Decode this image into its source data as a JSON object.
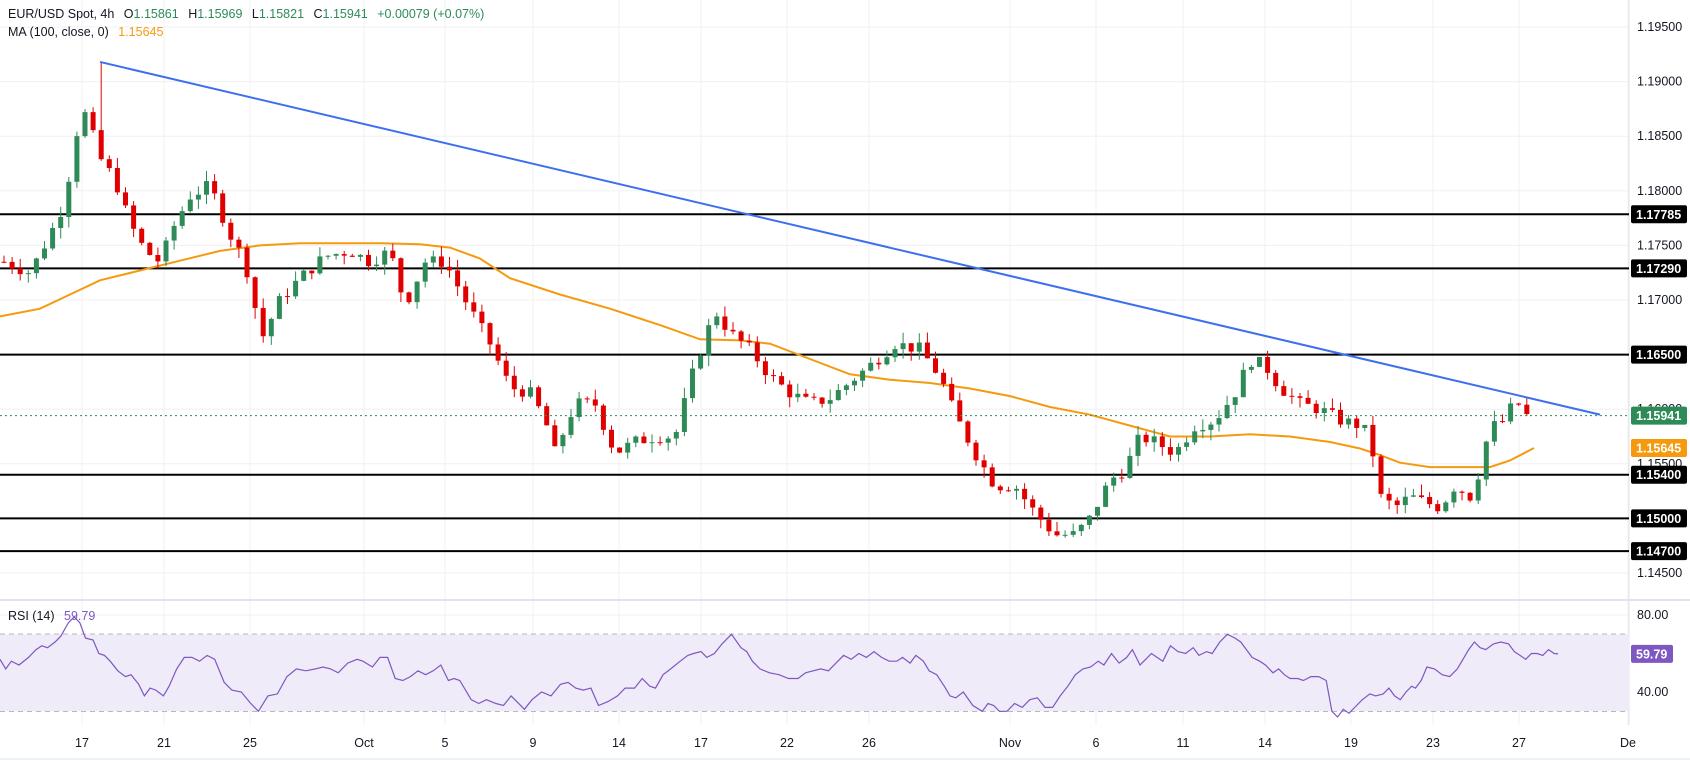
{
  "header": {
    "symbol": "EUR/USD Spot, 4h",
    "open_label": "O",
    "open": "1.15861",
    "high_label": "H",
    "high": "1.15969",
    "low_label": "L",
    "low": "1.15821",
    "close_label": "C",
    "close": "1.15941",
    "change": "+0.00079 (+0.07%)",
    "ma_label": "MA (100, close, 0)",
    "ma_value": "1.15645"
  },
  "rsi_legend": {
    "label": "RSI (14)",
    "value": "59.79"
  },
  "colors": {
    "up": "#2e8b57",
    "down": "#e00000",
    "ma": "#f59a0f",
    "trendline": "#3d6fef",
    "level": "#000000",
    "rsi": "#7e57c2",
    "rsi_band": "#efebf8",
    "grid": "#f0f0f3",
    "last_price": "#2e8b57"
  },
  "chart_data": {
    "type": "candlestick",
    "title": "EUR/USD Spot, 4h",
    "timeframe": "4h",
    "price_axis": {
      "ticks": [
        "1.19500",
        "1.19000",
        "1.18500",
        "1.18000",
        "1.17500",
        "1.17000",
        "1.16500",
        "1.16000",
        "1.15500",
        "1.14500"
      ],
      "range": [
        1.1425,
        1.1975
      ]
    },
    "x_axis": {
      "ticks": [
        "17",
        "21",
        "25",
        "Oct",
        "5",
        "9",
        "14",
        "17",
        "22",
        "26",
        "Nov",
        "6",
        "11",
        "14",
        "19",
        "23",
        "27",
        "De"
      ]
    },
    "horizontal_levels": [
      "1.17785",
      "1.17290",
      "1.16500",
      "1.15400",
      "1.15000",
      "1.14700"
    ],
    "last_price": "1.15941",
    "ma_100_last": "1.15645",
    "trendline": {
      "from": {
        "date": "Sep 18",
        "price": 1.1918
      },
      "to": {
        "date": "Nov 29",
        "price": 1.1595
      }
    },
    "close_path": [
      [
        4,
        1.1735
      ],
      [
        30,
        1.1725
      ],
      [
        50,
        1.176
      ],
      [
        65,
        1.179
      ],
      [
        75,
        1.185
      ],
      [
        85,
        1.187
      ],
      [
        95,
        1.1845
      ],
      [
        100,
        1.183
      ],
      [
        115,
        1.181
      ],
      [
        130,
        1.177
      ],
      [
        145,
        1.1745
      ],
      [
        160,
        1.1735
      ],
      [
        175,
        1.177
      ],
      [
        190,
        1.1795
      ],
      [
        210,
        1.1805
      ],
      [
        230,
        1.176
      ],
      [
        245,
        1.1735
      ],
      [
        262,
        1.1665
      ],
      [
        280,
        1.17
      ],
      [
        300,
        1.172
      ],
      [
        325,
        1.174
      ],
      [
        350,
        1.1745
      ],
      [
        370,
        1.1735
      ],
      [
        390,
        1.1745
      ],
      [
        405,
        1.1695
      ],
      [
        425,
        1.1735
      ],
      [
        445,
        1.1735
      ],
      [
        465,
        1.17
      ],
      [
        490,
        1.166
      ],
      [
        510,
        1.162
      ],
      [
        530,
        1.1615
      ],
      [
        545,
        1.159
      ],
      [
        555,
        1.156
      ],
      [
        575,
        1.1605
      ],
      [
        595,
        1.1605
      ],
      [
        615,
        1.156
      ],
      [
        635,
        1.157
      ],
      [
        655,
        1.1575
      ],
      [
        675,
        1.1575
      ],
      [
        695,
        1.164
      ],
      [
        715,
        1.169
      ],
      [
        730,
        1.167
      ],
      [
        750,
        1.1655
      ],
      [
        770,
        1.163
      ],
      [
        790,
        1.1615
      ],
      [
        810,
        1.1605
      ],
      [
        830,
        1.161
      ],
      [
        850,
        1.1625
      ],
      [
        870,
        1.164
      ],
      [
        895,
        1.166
      ],
      [
        920,
        1.1655
      ],
      [
        940,
        1.163
      ],
      [
        955,
        1.1595
      ],
      [
        975,
        1.156
      ],
      [
        995,
        1.153
      ],
      [
        1015,
        1.153
      ],
      [
        1035,
        1.1505
      ],
      [
        1055,
        1.1485
      ],
      [
        1075,
        1.1485
      ],
      [
        1090,
        1.15
      ],
      [
        1110,
        1.1535
      ],
      [
        1125,
        1.1545
      ],
      [
        1140,
        1.1575
      ],
      [
        1155,
        1.157
      ],
      [
        1175,
        1.156
      ],
      [
        1195,
        1.1585
      ],
      [
        1215,
        1.159
      ],
      [
        1235,
        1.1615
      ],
      [
        1250,
        1.1645
      ],
      [
        1265,
        1.164
      ],
      [
        1280,
        1.162
      ],
      [
        1300,
        1.1605
      ],
      [
        1320,
        1.16
      ],
      [
        1340,
        1.159
      ],
      [
        1360,
        1.1585
      ],
      [
        1370,
        1.1575
      ],
      [
        1380,
        1.152
      ],
      [
        1395,
        1.151
      ],
      [
        1410,
        1.152
      ],
      [
        1425,
        1.1515
      ],
      [
        1440,
        1.151
      ],
      [
        1455,
        1.153
      ],
      [
        1470,
        1.152
      ],
      [
        1480,
        1.1545
      ],
      [
        1490,
        1.1585
      ],
      [
        1500,
        1.1585
      ],
      [
        1510,
        1.16
      ],
      [
        1520,
        1.1605
      ],
      [
        1528,
        1.1592
      ],
      [
        1534,
        1.1594
      ]
    ],
    "ma_path": [
      [
        0,
        1.1685
      ],
      [
        40,
        1.1692
      ],
      [
        70,
        1.1705
      ],
      [
        100,
        1.1718
      ],
      [
        140,
        1.1727
      ],
      [
        180,
        1.1736
      ],
      [
        220,
        1.1745
      ],
      [
        260,
        1.175
      ],
      [
        300,
        1.1752
      ],
      [
        340,
        1.1752
      ],
      [
        380,
        1.1752
      ],
      [
        420,
        1.1751
      ],
      [
        450,
        1.1748
      ],
      [
        480,
        1.1738
      ],
      [
        510,
        1.172
      ],
      [
        560,
        1.1705
      ],
      [
        610,
        1.1692
      ],
      [
        660,
        1.1677
      ],
      [
        700,
        1.1664
      ],
      [
        740,
        1.1663
      ],
      [
        770,
        1.166
      ],
      [
        810,
        1.1646
      ],
      [
        850,
        1.1632
      ],
      [
        890,
        1.1627
      ],
      [
        930,
        1.1624
      ],
      [
        970,
        1.1619
      ],
      [
        1010,
        1.1612
      ],
      [
        1050,
        1.1602
      ],
      [
        1090,
        1.1595
      ],
      [
        1130,
        1.1585
      ],
      [
        1170,
        1.1575
      ],
      [
        1210,
        1.1575
      ],
      [
        1250,
        1.1577
      ],
      [
        1290,
        1.1575
      ],
      [
        1330,
        1.157
      ],
      [
        1360,
        1.1564
      ],
      [
        1380,
        1.1558
      ],
      [
        1400,
        1.1551
      ],
      [
        1430,
        1.1547
      ],
      [
        1460,
        1.1547
      ],
      [
        1490,
        1.1547
      ],
      [
        1510,
        1.1553
      ],
      [
        1534,
        1.15645
      ]
    ],
    "rsi": {
      "period": 14,
      "last": 59.79,
      "upper": 70,
      "middle": 50,
      "lower": 30,
      "axis_ticks": [
        "80.00",
        "40.00"
      ],
      "path": [
        [
          0,
          57
        ],
        [
          6,
          52
        ],
        [
          12,
          56
        ],
        [
          20,
          54
        ],
        [
          30,
          58
        ],
        [
          38,
          62
        ],
        [
          44,
          64
        ],
        [
          50,
          63
        ],
        [
          58,
          66
        ],
        [
          64,
          69
        ],
        [
          72,
          76
        ],
        [
          78,
          79
        ],
        [
          84,
          76
        ],
        [
          90,
          68
        ],
        [
          98,
          67
        ],
        [
          104,
          60
        ],
        [
          110,
          59
        ],
        [
          116,
          56
        ],
        [
          124,
          51
        ],
        [
          132,
          48
        ],
        [
          138,
          49
        ],
        [
          146,
          44
        ],
        [
          152,
          38
        ],
        [
          158,
          42
        ],
        [
          164,
          41
        ],
        [
          172,
          38
        ],
        [
          178,
          43
        ],
        [
          186,
          52
        ],
        [
          194,
          58
        ],
        [
          202,
          58
        ],
        [
          210,
          56
        ],
        [
          218,
          59
        ],
        [
          226,
          57
        ],
        [
          236,
          45
        ],
        [
          244,
          41
        ],
        [
          254,
          40
        ],
        [
          264,
          34
        ],
        [
          272,
          30
        ],
        [
          282,
          38
        ],
        [
          292,
          39
        ],
        [
          302,
          48
        ],
        [
          312,
          52
        ],
        [
          322,
          51
        ],
        [
          332,
          52
        ],
        [
          340,
          53
        ],
        [
          348,
          52
        ],
        [
          356,
          50
        ],
        [
          366,
          55
        ],
        [
          376,
          57
        ],
        [
          382,
          56
        ],
        [
          392,
          53
        ],
        [
          400,
          58
        ],
        [
          408,
          58
        ],
        [
          416,
          47
        ],
        [
          424,
          46
        ],
        [
          432,
          48
        ],
        [
          440,
          51
        ],
        [
          448,
          49
        ],
        [
          456,
          51
        ],
        [
          464,
          54
        ],
        [
          472,
          46
        ],
        [
          478,
          47
        ],
        [
          484,
          46
        ],
        [
          496,
          36
        ],
        [
          504,
          34
        ],
        [
          512,
          36
        ],
        [
          522,
          34
        ],
        [
          530,
          33
        ],
        [
          538,
          38
        ],
        [
          544,
          35
        ],
        [
          552,
          31
        ],
        [
          560,
          36
        ],
        [
          570,
          40
        ],
        [
          580,
          38
        ],
        [
          590,
          44
        ],
        [
          598,
          45
        ],
        [
          606,
          42
        ],
        [
          614,
          41
        ],
        [
          622,
          42
        ],
        [
          630,
          33
        ],
        [
          640,
          35
        ],
        [
          650,
          38
        ],
        [
          658,
          42
        ],
        [
          668,
          42
        ],
        [
          676,
          47
        ],
        [
          684,
          43
        ],
        [
          690,
          42
        ],
        [
          698,
          49
        ],
        [
          706,
          52
        ],
        [
          716,
          56
        ],
        [
          724,
          59
        ],
        [
          730,
          60
        ],
        [
          738,
          61
        ],
        [
          744,
          58
        ],
        [
          752,
          60
        ],
        [
          760,
          65
        ],
        [
          770,
          70
        ],
        [
          780,
          63
        ],
        [
          786,
          61
        ],
        [
          792,
          56
        ],
        [
          800,
          52
        ],
        [
          810,
          50
        ],
        [
          820,
          49
        ],
        [
          830,
          47
        ],
        [
          840,
          47
        ],
        [
          848,
          50
        ],
        [
          856,
          51
        ],
        [
          864,
          52
        ],
        [
          872,
          51
        ],
        [
          880,
          55
        ],
        [
          888,
          59
        ],
        [
          896,
          57
        ],
        [
          904,
          60
        ],
        [
          912,
          58
        ],
        [
          920,
          61
        ],
        [
          928,
          58
        ],
        [
          936,
          56
        ],
        [
          944,
          56
        ],
        [
          950,
          58
        ],
        [
          958,
          55
        ],
        [
          964,
          59
        ],
        [
          972,
          56
        ],
        [
          978,
          51
        ],
        [
          986,
          49
        ],
        [
          994,
          43
        ],
        [
          1000,
          38
        ],
        [
          1006,
          37
        ],
        [
          1014,
          40
        ],
        [
          1024,
          33
        ],
        [
          1034,
          30
        ],
        [
          1040,
          34
        ],
        [
          1046,
          33
        ],
        [
          1052,
          30
        ],
        [
          1060,
          30
        ],
        [
          1068,
          34
        ],
        [
          1076,
          32
        ],
        [
          1084,
          36
        ],
        [
          1092,
          37
        ],
        [
          1100,
          32
        ],
        [
          1108,
          32
        ],
        [
          1116,
          38
        ],
        [
          1124,
          43
        ],
        [
          1132,
          49
        ],
        [
          1140,
          52
        ],
        [
          1148,
          53
        ],
        [
          1156,
          56
        ],
        [
          1162,
          54
        ],
        [
          1170,
          60
        ],
        [
          1178,
          55
        ],
        [
          1186,
          58
        ],
        [
          1192,
          62
        ],
        [
          1200,
          54
        ],
        [
          1206,
          57
        ],
        [
          1212,
          60
        ],
        [
          1218,
          58
        ],
        [
          1224,
          56
        ],
        [
          1232,
          64
        ],
        [
          1240,
          61
        ],
        [
          1248,
          60
        ],
        [
          1256,
          63
        ],
        [
          1262,
          59
        ],
        [
          1270,
          61
        ],
        [
          1276,
          60
        ],
        [
          1284,
          66
        ],
        [
          1292,
          70
        ],
        [
          1300,
          68
        ],
        [
          1306,
          66
        ],
        [
          1312,
          62
        ],
        [
          1318,
          58
        ],
        [
          1326,
          56
        ],
        [
          1332,
          54
        ],
        [
          1340,
          50
        ],
        [
          1346,
          52
        ],
        [
          1352,
          49
        ],
        [
          1358,
          47
        ],
        [
          1366,
          47
        ],
        [
          1372,
          46
        ],
        [
          1380,
          48
        ],
        [
          1388,
          48
        ],
        [
          1396,
          46
        ],
        [
          1402,
          30
        ],
        [
          1408,
          27
        ],
        [
          1414,
          31
        ],
        [
          1420,
          29
        ],
        [
          1428,
          33
        ],
        [
          1434,
          36
        ],
        [
          1442,
          39
        ],
        [
          1448,
          38
        ],
        [
          1456,
          39
        ],
        [
          1462,
          42
        ],
        [
          1468,
          38
        ],
        [
          1474,
          36
        ],
        [
          1480,
          40
        ],
        [
          1486,
          43
        ],
        [
          1490,
          42
        ],
        [
          1496,
          46
        ],
        [
          1502,
          53
        ],
        [
          1510,
          52
        ],
        [
          1518,
          49
        ],
        [
          1526,
          48
        ],
        [
          1534,
          52
        ],
        [
          1540,
          57
        ],
        [
          1546,
          62
        ],
        [
          1552,
          66
        ],
        [
          1558,
          63
        ],
        [
          1564,
          62
        ],
        [
          1572,
          65
        ],
        [
          1580,
          66
        ],
        [
          1588,
          65
        ],
        [
          1594,
          61
        ],
        [
          1600,
          59
        ],
        [
          1606,
          57
        ],
        [
          1612,
          60
        ],
        [
          1618,
          60
        ],
        [
          1624,
          59
        ],
        [
          1630,
          62
        ],
        [
          1636,
          60
        ],
        [
          1640,
          59.79
        ]
      ]
    }
  }
}
